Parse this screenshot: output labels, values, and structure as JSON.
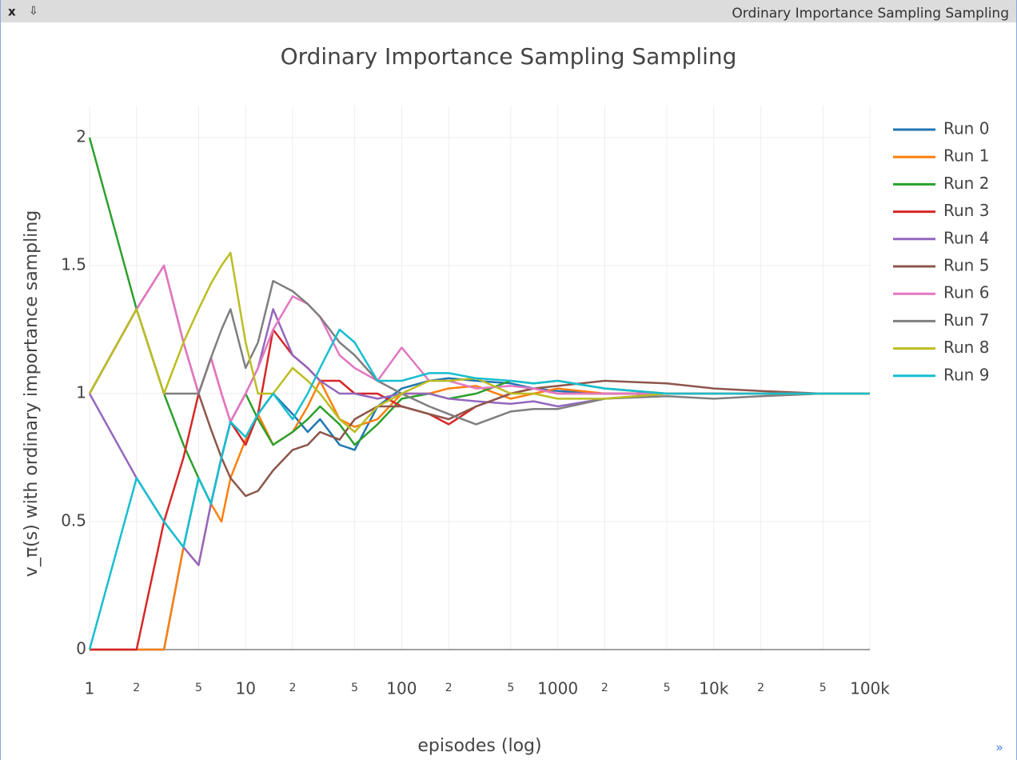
{
  "window_title": "Ordinary Importance Sampling Sampling",
  "chart_data": {
    "type": "line",
    "title": "Ordinary Importance Sampling Sampling",
    "x_label": "episodes (log)",
    "y_label": "v_π(s) with ordinary importance sampling",
    "x_log": true,
    "grid": true,
    "legend": "right",
    "xlim": [
      1,
      100000
    ],
    "ylim": [
      0,
      2
    ],
    "xticks": [
      1,
      2,
      5,
      10,
      {
        "value": 20,
        "label": "2"
      },
      {
        "value": 50,
        "label": "5"
      },
      100,
      {
        "value": 200,
        "label": "2"
      },
      {
        "value": 500,
        "label": "5"
      },
      1000,
      {
        "value": 2000,
        "label": "2"
      },
      {
        "value": 5000,
        "label": "5"
      },
      {
        "value": 10000,
        "label": "10k"
      },
      {
        "value": 20000,
        "label": "2"
      },
      {
        "value": 50000,
        "label": "5"
      },
      {
        "value": 100000,
        "label": "100k"
      }
    ],
    "yticks": [
      0,
      0.5,
      1,
      1.5,
      2
    ],
    "x": [
      1,
      2,
      3,
      4,
      5,
      6,
      7,
      8,
      10,
      12,
      15,
      20,
      25,
      30,
      40,
      50,
      70,
      100,
      150,
      200,
      300,
      500,
      700,
      1000,
      2000,
      5000,
      10000,
      20000,
      50000,
      100000
    ],
    "series": [
      {
        "name": "Run 0",
        "color": "#1f77b4",
        "values": [
          0,
          0,
          0,
          0.4,
          0.67,
          0.57,
          0.75,
          0.89,
          0.8,
          0.92,
          1.0,
          0.92,
          0.85,
          0.9,
          0.8,
          0.78,
          0.95,
          1.02,
          1.05,
          1.06,
          1.05,
          1.04,
          1.02,
          1.01,
          1.0,
          1.0,
          1.0,
          1.0,
          1.0,
          1.0
        ]
      },
      {
        "name": "Run 1",
        "color": "#ff7f0e",
        "values": [
          0,
          0,
          0,
          0.4,
          0.33,
          0.57,
          0.5,
          0.67,
          0.82,
          0.92,
          0.8,
          0.85,
          0.95,
          1.05,
          0.9,
          0.87,
          0.9,
          1.0,
          1.0,
          1.02,
          1.03,
          0.98,
          1.0,
          1.02,
          1.0,
          1.0,
          1.0,
          1.0,
          1.0,
          1.0
        ]
      },
      {
        "name": "Run 2",
        "color": "#2ca02c",
        "values": [
          2,
          1.33,
          1.0,
          0.8,
          0.67,
          0.57,
          0.75,
          0.89,
          1.0,
          0.9,
          0.8,
          0.85,
          0.9,
          0.95,
          0.88,
          0.8,
          0.88,
          0.98,
          1.0,
          0.98,
          1.0,
          1.05,
          1.04,
          1.05,
          1.02,
          1.0,
          1.0,
          1.0,
          1.0,
          1.0
        ]
      },
      {
        "name": "Run 3",
        "color": "#d62728",
        "values": [
          0,
          0,
          0.5,
          0.75,
          1.0,
          1.14,
          1.0,
          0.89,
          0.8,
          0.92,
          1.25,
          1.15,
          1.1,
          1.05,
          1.05,
          1.0,
          1.0,
          0.95,
          0.92,
          0.88,
          0.95,
          1.0,
          1.02,
          1.0,
          1.0,
          1.0,
          1.0,
          1.0,
          1.0,
          1.0
        ]
      },
      {
        "name": "Run 4",
        "color": "#9467bd",
        "values": [
          1,
          0.67,
          0.5,
          0.4,
          0.33,
          0.57,
          0.75,
          0.89,
          1.0,
          1.1,
          1.33,
          1.15,
          1.1,
          1.05,
          1.0,
          1.0,
          0.98,
          1.0,
          1.0,
          0.98,
          0.97,
          0.96,
          0.97,
          0.95,
          0.98,
          1.0,
          1.0,
          1.0,
          1.0,
          1.0
        ]
      },
      {
        "name": "Run 5",
        "color": "#8c564b",
        "values": [
          1,
          1.33,
          1.5,
          1.2,
          1.0,
          0.86,
          0.75,
          0.67,
          0.6,
          0.62,
          0.7,
          0.78,
          0.8,
          0.85,
          0.82,
          0.9,
          0.95,
          0.95,
          0.92,
          0.9,
          0.95,
          1.0,
          1.02,
          1.03,
          1.05,
          1.04,
          1.02,
          1.01,
          1.0,
          1.0
        ]
      },
      {
        "name": "Run 6",
        "color": "#e377c2",
        "values": [
          1,
          1.33,
          1.5,
          1.2,
          1.0,
          1.14,
          1.0,
          0.89,
          1.0,
          1.1,
          1.25,
          1.38,
          1.35,
          1.3,
          1.15,
          1.1,
          1.05,
          1.18,
          1.05,
          1.05,
          1.02,
          1.03,
          1.02,
          1.0,
          1.0,
          1.0,
          1.0,
          1.0,
          1.0,
          1.0
        ]
      },
      {
        "name": "Run 7",
        "color": "#7f7f7f",
        "values": [
          1,
          1.33,
          1.0,
          1.0,
          1.0,
          1.14,
          1.25,
          1.33,
          1.1,
          1.2,
          1.44,
          1.4,
          1.35,
          1.3,
          1.2,
          1.15,
          1.05,
          1.0,
          0.95,
          0.92,
          0.88,
          0.93,
          0.94,
          0.94,
          0.98,
          0.99,
          0.98,
          0.99,
          1.0,
          1.0
        ]
      },
      {
        "name": "Run 8",
        "color": "#bcbd22",
        "values": [
          1,
          1.33,
          1.0,
          1.2,
          1.33,
          1.43,
          1.5,
          1.55,
          1.2,
          1.0,
          1.0,
          1.1,
          1.05,
          1.0,
          0.9,
          0.85,
          0.95,
          1.0,
          1.05,
          1.05,
          1.06,
          1.0,
          1.0,
          0.98,
          0.98,
          1.0,
          1.0,
          1.0,
          1.0,
          1.0
        ]
      },
      {
        "name": "Run 9",
        "color": "#17becf",
        "values": [
          0,
          0.67,
          0.5,
          0.4,
          0.67,
          0.57,
          0.75,
          0.89,
          0.83,
          0.92,
          1.0,
          0.9,
          1.0,
          1.1,
          1.25,
          1.2,
          1.05,
          1.05,
          1.08,
          1.08,
          1.06,
          1.05,
          1.04,
          1.05,
          1.02,
          1.0,
          1.0,
          1.0,
          1.0,
          1.0
        ]
      }
    ]
  }
}
